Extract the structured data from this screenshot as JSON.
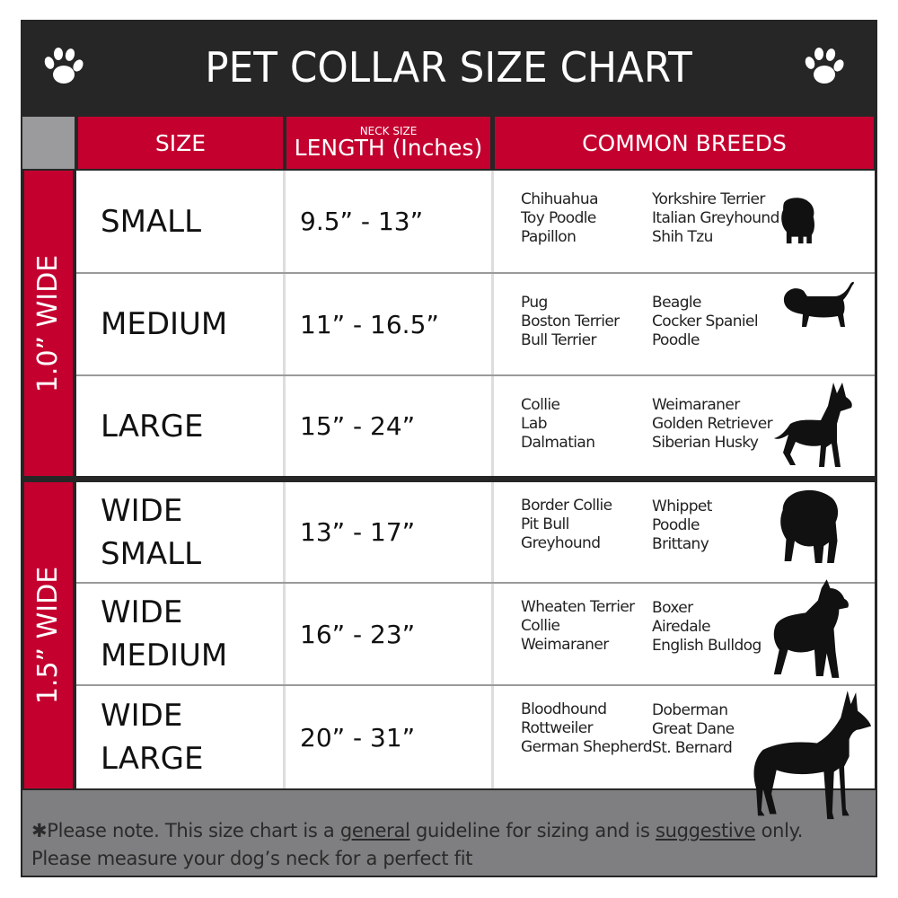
{
  "title": "PET COLLAR SIZE CHART",
  "icons": {
    "left": "paw-icon",
    "right": "paw-icon"
  },
  "colors": {
    "header_red": "#c4002f",
    "title_bg": "#262626",
    "footer_gray": "#7f7f81"
  },
  "header": {
    "size": "SIZE",
    "length_small": "NECK SIZE",
    "length": "LENGTH (Inches)",
    "breeds": "COMMON BREEDS"
  },
  "groups": [
    {
      "label": "1.0” WIDE"
    },
    {
      "label": "1.5” WIDE"
    }
  ],
  "rows": [
    {
      "size": [
        "SMALL"
      ],
      "length": "9.5” - 13”",
      "breeds_a": [
        "Chihuahua",
        "Toy Poodle",
        "Papillon"
      ],
      "breeds_b": [
        "Yorkshire Terrier",
        "Italian Greyhound",
        "Shih Tzu"
      ],
      "icon": "small-dog-silhouette-icon"
    },
    {
      "size": [
        "MEDIUM"
      ],
      "length": "11” - 16.5”",
      "breeds_a": [
        "Pug",
        "Boston Terrier",
        "Bull Terrier"
      ],
      "breeds_b": [
        "Beagle",
        "Cocker Spaniel",
        "Poodle"
      ],
      "icon": "beagle-silhouette-icon"
    },
    {
      "size": [
        "LARGE"
      ],
      "length": "15” - 24”",
      "breeds_a": [
        "Collie",
        "Lab",
        "Dalmatian"
      ],
      "breeds_b": [
        "Weimaraner",
        "Golden Retriever",
        "Siberian Husky"
      ],
      "icon": "husky-silhouette-icon"
    },
    {
      "size": [
        "WIDE",
        "SMALL"
      ],
      "length": "13” - 17”",
      "breeds_a": [
        "Border Collie",
        "Pit Bull",
        "Greyhound"
      ],
      "breeds_b": [
        "Whippet",
        "Poodle",
        "Brittany"
      ],
      "icon": "bulldog-silhouette-icon"
    },
    {
      "size": [
        "WIDE",
        "MEDIUM"
      ],
      "length": "16” - 23”",
      "breeds_a": [
        "Wheaten Terrier",
        "Collie",
        "Weimaraner"
      ],
      "breeds_b": [
        "Boxer",
        "Airedale",
        "English Bulldog"
      ],
      "icon": "pitbull-silhouette-icon"
    },
    {
      "size": [
        "WIDE",
        "LARGE"
      ],
      "length": "20” - 31”",
      "breeds_a": [
        "Bloodhound",
        "Rottweiler",
        "German Shepherd"
      ],
      "breeds_b": [
        "Doberman",
        "Great Dane",
        "St. Bernard"
      ],
      "icon": "doberman-silhouette-icon"
    }
  ],
  "footer": {
    "p1": "✱Please note. This size chart is a",
    "u1": "general",
    "p2": " guideline for sizing and is",
    "u2": "suggestive",
    "p3": " only.",
    "line2": "Please measure your dog’s neck for a perfect fit"
  }
}
